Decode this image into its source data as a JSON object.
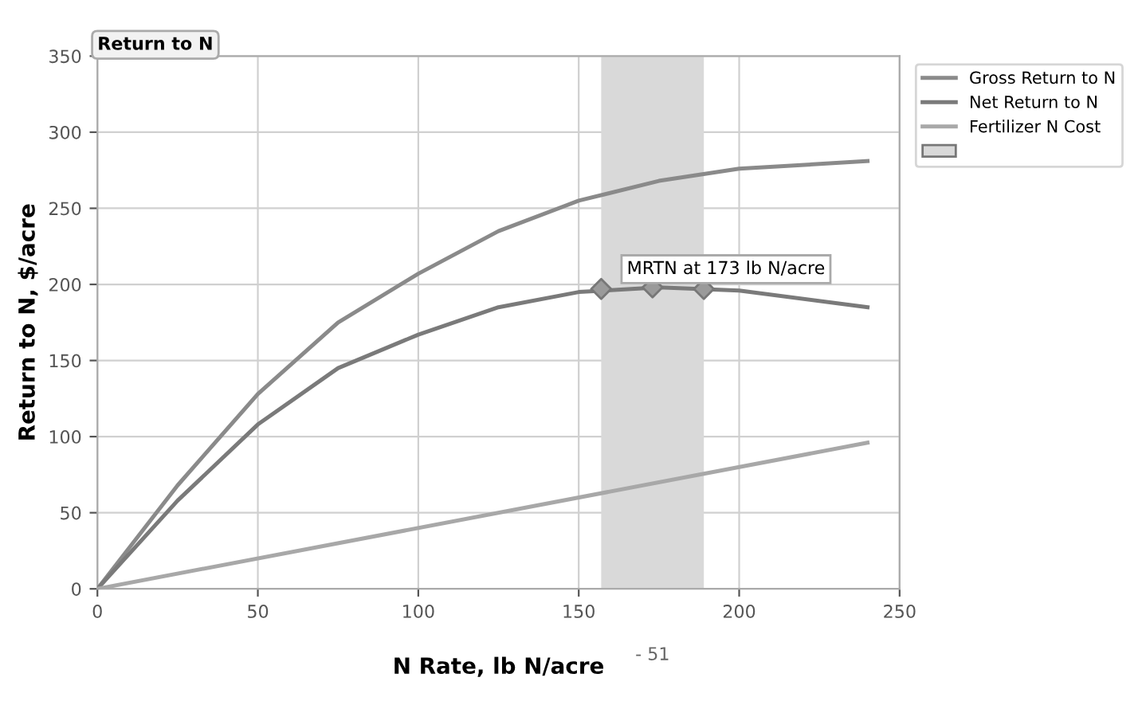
{
  "chart_data": {
    "type": "line",
    "title": "Return to N",
    "xlabel": "N Rate, lb N/acre",
    "ylabel": "Return to N, $/acre",
    "xlim": [
      0,
      250
    ],
    "ylim": [
      0,
      350
    ],
    "xticks": [
      0,
      50,
      100,
      150,
      200,
      250
    ],
    "yticks": [
      0,
      50,
      100,
      150,
      200,
      250,
      300,
      350
    ],
    "grid": true,
    "legend": "top right",
    "marker": "none",
    "line_style": "solid",
    "series": [
      {
        "name": "Gross Return to N",
        "color": "#8a8a8a",
        "x": [
          0,
          25,
          50,
          75,
          100,
          125,
          150,
          175,
          200,
          240
        ],
        "values": [
          0,
          68,
          128,
          175,
          207,
          235,
          255,
          268,
          276,
          281
        ]
      },
      {
        "name": "Net Return to N",
        "color": "#7a7a7a",
        "x": [
          0,
          25,
          50,
          75,
          100,
          125,
          150,
          175,
          200,
          240
        ],
        "values": [
          0,
          58,
          108,
          145,
          167,
          185,
          195,
          198,
          196,
          185
        ]
      },
      {
        "name": "Fertilizer N Cost",
        "color": "#a8a8a8",
        "x": [
          0,
          240
        ],
        "values": [
          0,
          96
        ]
      },
      {
        "type": "scatter",
        "marker": "diamond",
        "color": "#9a9a9a",
        "x": [
          157,
          173,
          189
        ],
        "values": [
          197,
          198,
          197
        ]
      }
    ],
    "bands": [
      {
        "axis": "x",
        "from": 157,
        "to": 189,
        "color": "#d9d9d9"
      }
    ],
    "annotations": [
      {
        "text": "MRTN at 173 lb N/acre",
        "x": 173,
        "y": 198
      },
      "- 51"
    ]
  }
}
